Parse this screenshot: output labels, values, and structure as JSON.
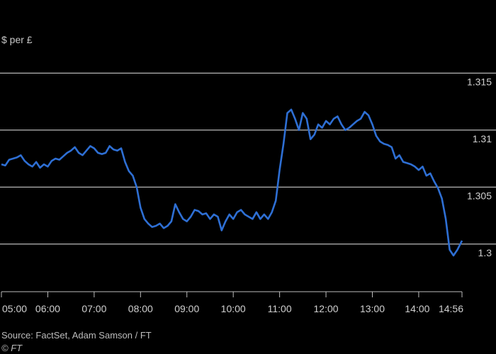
{
  "chart_data": {
    "type": "line",
    "ylabel": "$ per £",
    "ylim": [
      1.2975,
      1.3175
    ],
    "y_ticks": [
      1.3,
      1.305,
      1.31,
      1.315
    ],
    "y_tick_labels": [
      "1.3",
      "1.305",
      "1.31",
      "1.315"
    ],
    "grid": true,
    "x_ticks": [
      "05:00",
      "06:00",
      "07:00",
      "08:00",
      "09:00",
      "10:00",
      "11:00",
      "12:00",
      "13:00",
      "14:00",
      "14:56"
    ],
    "xlim": [
      "05:00",
      "14:56"
    ],
    "line_color": "#2e6fd4",
    "series": [
      {
        "x": [
          "05:00",
          "05:05",
          "05:10",
          "05:15",
          "05:20",
          "05:25",
          "05:30",
          "05:35",
          "05:40",
          "05:45",
          "05:50",
          "05:55",
          "06:00",
          "06:05",
          "06:10",
          "06:15",
          "06:20",
          "06:25",
          "06:30",
          "06:35",
          "06:40",
          "06:45",
          "06:50",
          "06:55",
          "07:00",
          "07:05",
          "07:10",
          "07:15",
          "07:20",
          "07:25",
          "07:30",
          "07:35",
          "07:40",
          "07:45",
          "07:50",
          "07:55",
          "08:00",
          "08:05",
          "08:10",
          "08:15",
          "08:20",
          "08:25",
          "08:30",
          "08:35",
          "08:40",
          "08:45",
          "08:50",
          "08:55",
          "09:00",
          "09:05",
          "09:10",
          "09:15",
          "09:20",
          "09:25",
          "09:30",
          "09:35",
          "09:40",
          "09:45",
          "09:50",
          "09:55",
          "10:00",
          "10:05",
          "10:10",
          "10:15",
          "10:20",
          "10:25",
          "10:30",
          "10:35",
          "10:40",
          "10:45",
          "10:50",
          "10:55",
          "11:00",
          "11:05",
          "11:10",
          "11:15",
          "11:20",
          "11:25",
          "11:30",
          "11:35",
          "11:40",
          "11:45",
          "11:50",
          "11:55",
          "12:00",
          "12:05",
          "12:10",
          "12:15",
          "12:20",
          "12:25",
          "12:30",
          "12:35",
          "12:40",
          "12:45",
          "12:50",
          "12:55",
          "13:00",
          "13:05",
          "13:10",
          "13:15",
          "13:20",
          "13:25",
          "13:30",
          "13:35",
          "13:40",
          "13:45",
          "13:50",
          "13:55",
          "14:00",
          "14:05",
          "14:10",
          "14:15",
          "14:20",
          "14:25",
          "14:30",
          "14:35",
          "14:40",
          "14:45",
          "14:50",
          "14:56"
        ],
        "values": [
          1.307,
          1.3069,
          1.3074,
          1.3075,
          1.3076,
          1.3078,
          1.3073,
          1.307,
          1.3068,
          1.3072,
          1.3067,
          1.307,
          1.3068,
          1.3073,
          1.3075,
          1.3074,
          1.3077,
          1.308,
          1.3082,
          1.3085,
          1.308,
          1.3078,
          1.3082,
          1.3086,
          1.3084,
          1.308,
          1.3079,
          1.308,
          1.3086,
          1.3083,
          1.3082,
          1.3084,
          1.3072,
          1.3064,
          1.306,
          1.305,
          1.3032,
          1.3022,
          1.3018,
          1.3015,
          1.3016,
          1.3018,
          1.3014,
          1.3016,
          1.302,
          1.3035,
          1.3028,
          1.3022,
          1.302,
          1.3024,
          1.303,
          1.3029,
          1.3026,
          1.3027,
          1.3022,
          1.3026,
          1.3024,
          1.3012,
          1.302,
          1.3026,
          1.3022,
          1.3028,
          1.303,
          1.3026,
          1.3024,
          1.3022,
          1.3028,
          1.3022,
          1.3026,
          1.3022,
          1.3028,
          1.3038,
          1.3065,
          1.3088,
          1.3115,
          1.3118,
          1.311,
          1.31,
          1.3115,
          1.311,
          1.3092,
          1.3096,
          1.3105,
          1.3102,
          1.3108,
          1.3105,
          1.311,
          1.3112,
          1.3105,
          1.31,
          1.3102,
          1.3105,
          1.3108,
          1.311,
          1.3116,
          1.3113,
          1.3105,
          1.3095,
          1.309,
          1.3088,
          1.3087,
          1.3085,
          1.3075,
          1.3078,
          1.3072,
          1.3071,
          1.307,
          1.3068,
          1.3065,
          1.3068,
          1.306,
          1.3062,
          1.3055,
          1.3049,
          1.304,
          1.3022,
          1.2995,
          1.299,
          1.2995,
          1.3003
        ]
      }
    ]
  },
  "source": "Source: FactSet, Adam Samson / FT",
  "copyright": "© FT"
}
